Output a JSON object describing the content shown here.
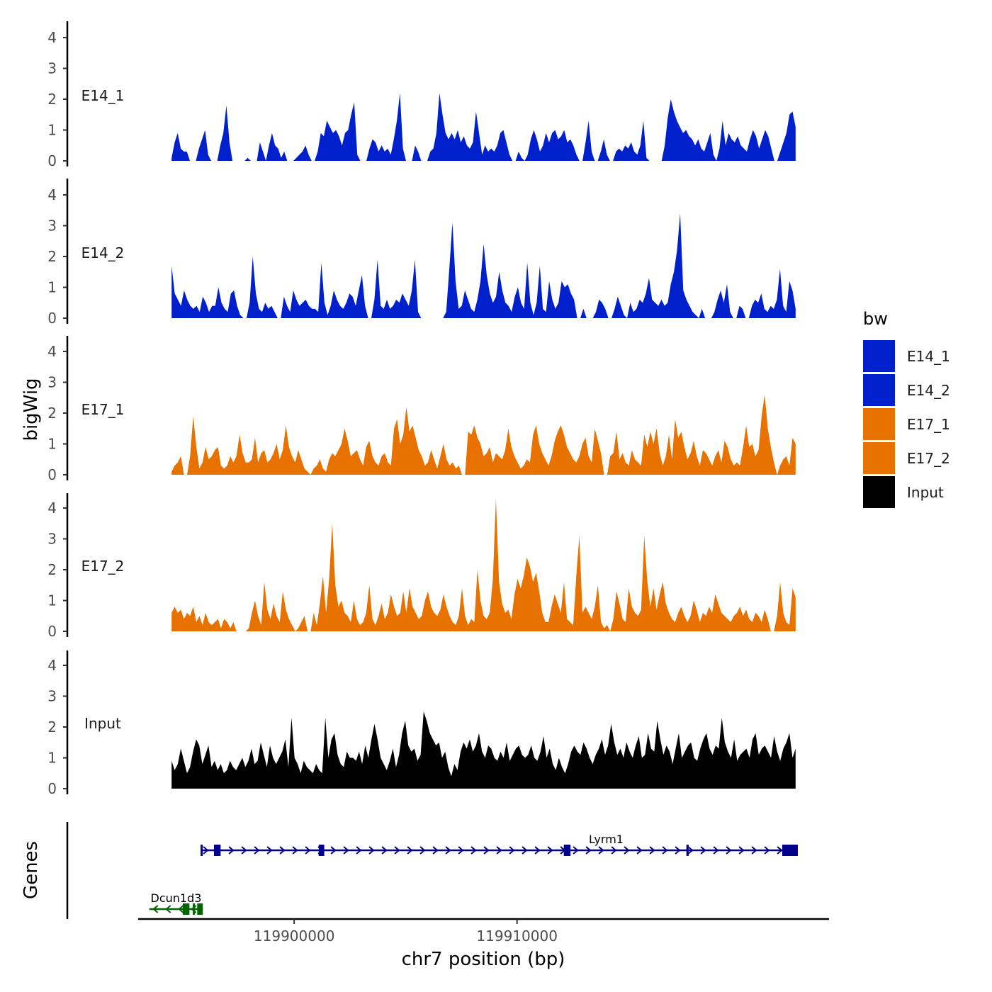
{
  "chart_data": {
    "type": "area",
    "y_axis_title": "bigWig",
    "genes_axis_title": "Genes",
    "x_axis_title": "chr7 position (bp)",
    "xlim": [
      119893000,
      119924000
    ],
    "x_ticks": [
      119900000,
      119910000
    ],
    "x_tick_labels": [
      "119900000",
      "119910000"
    ],
    "ylim": [
      0,
      4.5
    ],
    "y_ticks": [
      0,
      1,
      2,
      3,
      4
    ],
    "y_tick_labels": [
      "0",
      "1",
      "2",
      "3",
      "4"
    ],
    "legend": {
      "title": "bw",
      "entries": [
        {
          "label": "E14_1",
          "color": "#0020CC"
        },
        {
          "label": "E14_2",
          "color": "#0020CC"
        },
        {
          "label": "E17_1",
          "color": "#E87200"
        },
        {
          "label": "E17_2",
          "color": "#E87200"
        },
        {
          "label": "Input",
          "color": "#000000"
        }
      ]
    },
    "track_x_range": [
      119894500,
      119922500
    ],
    "tracks": [
      {
        "name": "E14_1",
        "color": "#0020CC",
        "values": [
          0.1,
          0.6,
          0.9,
          0.4,
          0.3,
          0.3,
          0,
          0,
          0,
          0.4,
          0.7,
          1,
          0.2,
          0,
          0,
          0,
          0.5,
          0.9,
          1.8,
          0.6,
          0,
          0,
          0,
          0,
          0,
          0.1,
          0,
          0,
          0,
          0.6,
          0.3,
          0,
          0.5,
          0.9,
          0.5,
          0.4,
          0.1,
          0.3,
          0,
          0,
          0,
          0.1,
          0.2,
          0.3,
          0.5,
          0.2,
          0,
          0,
          0.3,
          0.9,
          0.8,
          1.3,
          1.1,
          0.9,
          1.0,
          0.8,
          0.5,
          0.9,
          1.0,
          1.5,
          1.9,
          0.2,
          0,
          0,
          0,
          0.4,
          0.7,
          0.6,
          0.3,
          0.5,
          0.3,
          0.4,
          0.2,
          0.7,
          1.3,
          2.2,
          0.4,
          0,
          0,
          0,
          0.5,
          0.3,
          0,
          0,
          0,
          0.3,
          0.4,
          0.9,
          2.2,
          1.5,
          0.9,
          0.7,
          0.9,
          0.7,
          1.0,
          0.6,
          0.8,
          0.5,
          0.4,
          0.6,
          1.6,
          0.9,
          0.2,
          0.5,
          0.3,
          0.4,
          0.3,
          0.5,
          0.9,
          1.0,
          0.6,
          0.2,
          0,
          0,
          0.3,
          0.1,
          0,
          0.2,
          0.7,
          1.0,
          0.7,
          0.3,
          0.5,
          0.9,
          0.6,
          0.9,
          1.0,
          0.7,
          0.8,
          1.0,
          0.6,
          0.7,
          0.5,
          0.2,
          0,
          0,
          0.6,
          1.3,
          0.3,
          0,
          0,
          0.3,
          0.7,
          0.2,
          0,
          0,
          0.3,
          0.4,
          0.3,
          0.5,
          0.4,
          0.6,
          0.3,
          0.2,
          0.5,
          1.3,
          0.1,
          0,
          0,
          0,
          0,
          0,
          0.5,
          1.4,
          2.0,
          1.6,
          1.3,
          1.1,
          0.9,
          1.0,
          0.8,
          0.7,
          0.5,
          0.7,
          0.4,
          0.3,
          0.6,
          0.9,
          0.2,
          0,
          0.4,
          1.3,
          0.5,
          0.9,
          0.7,
          0.6,
          0.8,
          0.5,
          0.4,
          0.3,
          0.7,
          1.0,
          0.8,
          0.4,
          0.7,
          1.0,
          0.8,
          0.4,
          0,
          0,
          0.3,
          0.6,
          0.9,
          1.5,
          1.6,
          1.1
        ]
      },
      {
        "name": "E14_2",
        "color": "#0020CC",
        "values": [
          1.7,
          0.8,
          0.6,
          0.4,
          0.9,
          0.6,
          0.4,
          0.3,
          0.4,
          0.2,
          0.7,
          0.5,
          0.2,
          0.4,
          0.4,
          1.0,
          0.5,
          0.3,
          0.2,
          0.8,
          0.9,
          0.4,
          0.1,
          0,
          0,
          0.5,
          2.0,
          0.8,
          0.3,
          0.2,
          0.5,
          0.3,
          0.4,
          0.2,
          0,
          0,
          0.7,
          0.4,
          0.2,
          0.9,
          0.6,
          0.4,
          0.5,
          0.6,
          0.4,
          0.3,
          0.3,
          0.2,
          1.8,
          0.5,
          0.1,
          0.4,
          0.9,
          0.6,
          0.4,
          0.3,
          0.5,
          0.8,
          0.7,
          0.4,
          0.9,
          1.4,
          0.4,
          0,
          0,
          0.6,
          1.9,
          0.4,
          0.3,
          0.6,
          0.3,
          0.4,
          0.6,
          0.5,
          0.8,
          0.6,
          0.4,
          0.9,
          1.9,
          0.2,
          0,
          0,
          0,
          0,
          0,
          0,
          0,
          0,
          0.2,
          1.6,
          3.1,
          1.2,
          0.3,
          0.4,
          0.9,
          0.6,
          0.3,
          0.2,
          0.6,
          1.2,
          2.4,
          1.4,
          0.8,
          0.5,
          0.7,
          1.5,
          0.9,
          0.5,
          0.4,
          0.2,
          0.7,
          1.0,
          0.5,
          0.3,
          1.8,
          0.5,
          0.1,
          0.5,
          1.7,
          0.3,
          0.2,
          1.2,
          0.6,
          0.3,
          0.5,
          1.2,
          1.0,
          1.1,
          0.8,
          0.6,
          0,
          0,
          0.3,
          0,
          0,
          0,
          0.2,
          0.6,
          0.5,
          0.3,
          0,
          0,
          0.3,
          0.7,
          0.4,
          0.1,
          0,
          0.5,
          0.2,
          0.3,
          0.6,
          0.5,
          0.8,
          1.3,
          0.6,
          0.5,
          0.4,
          0.6,
          0.4,
          0.5,
          1.1,
          1.5,
          2.2,
          3.4,
          0.9,
          0.6,
          0.4,
          0.2,
          0.1,
          0,
          0.3,
          0,
          0,
          0,
          0.2,
          0.6,
          0.9,
          0.5,
          1.1,
          0.2,
          0,
          0,
          0.4,
          0.3,
          0,
          0,
          0.4,
          0.6,
          0.5,
          0.8,
          0.3,
          0.2,
          0.4,
          0.3,
          0.6,
          1.6,
          0.4,
          0.2,
          1.2,
          0.9,
          0.3
        ]
      },
      {
        "name": "E17_1",
        "color": "#E87200",
        "values": [
          0.1,
          0.3,
          0.4,
          0.6,
          0,
          0,
          0.6,
          1.9,
          0.9,
          0.2,
          0.4,
          0.9,
          0.5,
          0.6,
          0.8,
          0.9,
          0.3,
          0.2,
          0.3,
          0.6,
          0.4,
          0.6,
          1.3,
          0.7,
          0.4,
          0.4,
          0.5,
          1.2,
          0.4,
          0.7,
          0.8,
          0.4,
          0.5,
          0.7,
          1.0,
          0.5,
          0.8,
          1.6,
          0.9,
          0.6,
          0.4,
          0.8,
          0.5,
          0.2,
          0.1,
          0,
          0.2,
          0.3,
          0.5,
          0.2,
          0.1,
          0.5,
          0.7,
          0.6,
          0.8,
          1.0,
          1.5,
          1.1,
          0.6,
          0.7,
          0.8,
          0.5,
          0.3,
          0.9,
          1.1,
          0.6,
          0.4,
          0.3,
          0.6,
          0.7,
          0.4,
          0.3,
          1.5,
          1.8,
          1.0,
          1.3,
          2.2,
          1.4,
          1.6,
          1.2,
          0.8,
          0.6,
          0.3,
          0.4,
          0.8,
          0.5,
          0.2,
          0.6,
          1.0,
          0.5,
          0.3,
          0.4,
          0.2,
          0.3,
          0,
          0,
          1.4,
          1.3,
          1.6,
          1.2,
          1.0,
          0.6,
          0.7,
          0.9,
          0.4,
          0.7,
          0.6,
          0.5,
          0.8,
          1.5,
          0.9,
          0.6,
          0.4,
          0.2,
          0.3,
          0.5,
          0.4,
          1.3,
          1.6,
          1.0,
          0.7,
          0.5,
          0.3,
          0.6,
          1.1,
          1.4,
          1.6,
          1.3,
          0.9,
          0.7,
          0.5,
          0.4,
          0.6,
          1.0,
          1.2,
          0.6,
          0.4,
          1.5,
          1.1,
          0.7,
          0,
          0,
          0.6,
          0.7,
          1.4,
          0.5,
          0.7,
          0.4,
          0.3,
          0.8,
          0.5,
          0.4,
          0.3,
          1.3,
          0.9,
          1.4,
          1.0,
          1.5,
          0.7,
          0.3,
          0.6,
          1.3,
          0.5,
          1.8,
          1.2,
          1.4,
          0.9,
          0.5,
          0.7,
          1.1,
          0.6,
          0.3,
          0.8,
          0.7,
          0.5,
          0.3,
          0.6,
          0.8,
          0.4,
          1.1,
          0.9,
          0.5,
          0.3,
          0.4,
          0.3,
          0.9,
          1.6,
          0.9,
          1.0,
          0.6,
          0.8,
          1.9,
          2.6,
          1.5,
          0.9,
          0.4,
          0,
          0.3,
          0.5,
          0.6,
          0.3,
          1.2,
          1.0
        ]
      },
      {
        "name": "E17_2",
        "color": "#E87200",
        "values": [
          0.6,
          0.8,
          0.6,
          0.7,
          0.4,
          0.6,
          0.5,
          0.8,
          0.3,
          0.5,
          0.2,
          0.6,
          0.3,
          0.2,
          0.3,
          0.4,
          0.1,
          0.4,
          0.3,
          0.1,
          0.3,
          0,
          0,
          0,
          0,
          0.1,
          0.6,
          1.0,
          0.5,
          0.2,
          1.6,
          0.7,
          0.4,
          0.9,
          0.5,
          0.3,
          1.3,
          0.7,
          0.4,
          0.2,
          0,
          0.1,
          0.3,
          0.5,
          0,
          0,
          0.6,
          0.2,
          0.9,
          1.8,
          0.6,
          1.7,
          3.5,
          1.5,
          0.8,
          1.0,
          0.6,
          0.5,
          0.3,
          1.0,
          0.4,
          0.2,
          0.3,
          0.6,
          1.5,
          0.4,
          0.2,
          0.5,
          0.9,
          0.4,
          0.6,
          1.2,
          0.8,
          0.5,
          0.6,
          1.3,
          0.6,
          1.4,
          0.8,
          0.6,
          0.4,
          0.5,
          1.0,
          1.3,
          0.8,
          0.6,
          0.5,
          0.7,
          1.2,
          0.8,
          0.5,
          0.3,
          0.2,
          0.5,
          1.4,
          0.5,
          0.2,
          0.4,
          0.3,
          2.0,
          1.0,
          0.5,
          0.4,
          0.6,
          1.7,
          4.3,
          1.6,
          0.9,
          0.6,
          0.7,
          0.4,
          1.2,
          1.7,
          1.4,
          1.8,
          2.4,
          2.1,
          1.6,
          1.9,
          1.3,
          0.6,
          0.3,
          0.3,
          0.8,
          1.2,
          0.9,
          0.6,
          1.6,
          0.4,
          0.3,
          0.2,
          1.8,
          3.1,
          0.6,
          0.8,
          0.6,
          0.4,
          0.8,
          1.5,
          0.3,
          0.1,
          0.2,
          0,
          0.4,
          1.3,
          0.9,
          0.4,
          0.3,
          1.4,
          0.8,
          0.6,
          0.5,
          0.7,
          3.1,
          1.6,
          0.8,
          1.4,
          0.7,
          1.2,
          1.6,
          0.9,
          0.6,
          0.4,
          0.3,
          0.6,
          0.8,
          0.5,
          0.3,
          0.5,
          1.0,
          0.7,
          0.3,
          0.6,
          0.5,
          0.8,
          0.6,
          1.2,
          0.9,
          0.6,
          0.5,
          0.4,
          0.3,
          0.5,
          0.6,
          0.8,
          0.5,
          0.7,
          0.4,
          0.3,
          0.6,
          0.5,
          0.3,
          0.7,
          0.4,
          0,
          0,
          0.5,
          1.6,
          0.6,
          0.3,
          0.2,
          1.4,
          1.1
        ]
      },
      {
        "name": "Input",
        "color": "#000000",
        "values": [
          0.9,
          0.6,
          0.8,
          1.3,
          0.9,
          0.5,
          0.7,
          1.2,
          1.6,
          1.4,
          0.8,
          1.1,
          1.4,
          0.7,
          0.9,
          0.6,
          0.8,
          0.5,
          0.6,
          0.9,
          0.7,
          0.6,
          0.8,
          1.0,
          0.7,
          0.9,
          1.3,
          0.8,
          0.9,
          1.5,
          1.1,
          0.7,
          1.4,
          1.0,
          0.8,
          1.0,
          1.2,
          1.6,
          0.7,
          2.3,
          1.0,
          0.8,
          0.5,
          0.9,
          0.7,
          0.6,
          0.5,
          0.8,
          0.6,
          0.5,
          2.3,
          1.0,
          1.6,
          1.8,
          1.1,
          0.8,
          0.7,
          1.2,
          1.0,
          1.0,
          0.9,
          1.2,
          0.8,
          1.4,
          1.0,
          1.6,
          2.1,
          1.6,
          1.0,
          0.8,
          0.6,
          0.9,
          1.3,
          0.7,
          1.1,
          1.8,
          2.2,
          1.4,
          1.2,
          1.3,
          0.9,
          1.1,
          2.5,
          2.2,
          1.8,
          1.6,
          1.4,
          1.5,
          1.0,
          1.2,
          0.7,
          0.4,
          0.8,
          0.6,
          1.2,
          1.5,
          1.3,
          1.6,
          1.2,
          1.4,
          1.8,
          1.2,
          1.0,
          1.4,
          1.3,
          1.0,
          0.9,
          1.2,
          1.0,
          1.5,
          0.9,
          1.1,
          1.3,
          1.4,
          1.1,
          1.0,
          1.1,
          1.4,
          1.0,
          0.9,
          1.2,
          1.7,
          1.0,
          1.3,
          0.8,
          0.6,
          1.0,
          0.7,
          0.5,
          0.8,
          1.2,
          1.4,
          1.2,
          1.1,
          1.5,
          1.3,
          1.0,
          0.8,
          1.1,
          1.3,
          1.6,
          1.1,
          1.4,
          2.1,
          1.5,
          1.1,
          1.3,
          1.0,
          1.5,
          1.2,
          1.0,
          1.4,
          1.7,
          1.0,
          1.1,
          1.8,
          1.3,
          1.2,
          2.2,
          1.6,
          1.1,
          1.4,
          1.2,
          0.8,
          1.3,
          1.8,
          1.0,
          1.2,
          1.4,
          1.5,
          1.0,
          0.9,
          1.3,
          1.6,
          1.8,
          1.3,
          1.1,
          1.4,
          1.3,
          2.3,
          1.5,
          1.2,
          1.0,
          1.6,
          0.9,
          1.1,
          1.2,
          1.3,
          1.0,
          1.6,
          1.8,
          1.1,
          1.3,
          1.4,
          1.2,
          1.0,
          1.7,
          1.2,
          0.9,
          1.3,
          1.5,
          1.8,
          1.0,
          1.3
        ]
      }
    ],
    "genes": [
      {
        "name": "Lyrm1",
        "strand": "+",
        "color": "#00008B",
        "start": 119895800,
        "end": 119922600,
        "exons": [
          [
            119895800,
            119895820
          ],
          [
            119896400,
            119896700
          ],
          [
            119901100,
            119901350
          ],
          [
            119912100,
            119912400
          ],
          [
            119917600,
            119917700
          ],
          [
            119921900,
            119922600
          ]
        ],
        "label_x": 119914000,
        "row": 1
      },
      {
        "name": "Dcun1d3",
        "strand": "-",
        "color": "#006400",
        "start": 119893500,
        "end": 119895900,
        "exons": [
          [
            119895000,
            119895300
          ],
          [
            119895450,
            119895550
          ],
          [
            119895650,
            119895900
          ]
        ],
        "label_x": 119894700,
        "row": 2
      }
    ]
  }
}
